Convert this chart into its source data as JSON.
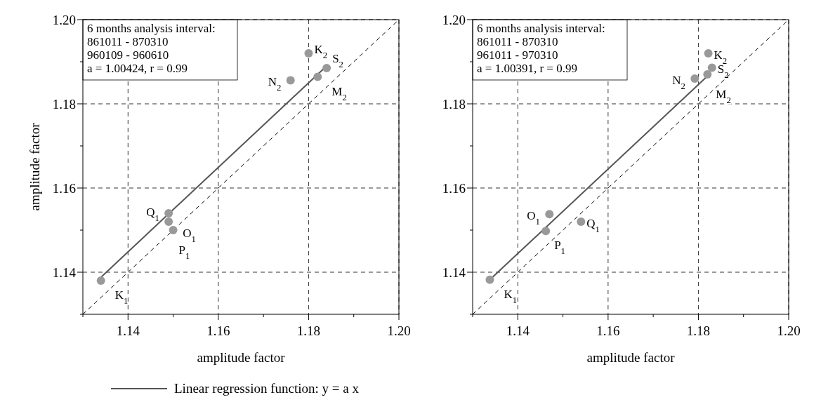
{
  "chart_data": [
    {
      "type": "scatter",
      "ylabel": "amplitude factor",
      "xlabel": "amplitude factor",
      "xlim": [
        1.13,
        1.2
      ],
      "ylim": [
        1.13,
        1.2
      ],
      "xticks": [
        {
          "value": 1.13,
          "label": null
        },
        1.14,
        {
          "value": 1.15,
          "label": null
        },
        1.16,
        {
          "value": 1.17,
          "label": null
        },
        1.18,
        {
          "value": 1.19,
          "label": null
        },
        {
          "value": 1.2,
          "label": "1.20"
        }
      ],
      "yticks": [
        {
          "value": 1.13,
          "label": null
        },
        1.14,
        {
          "value": 1.15,
          "label": null
        },
        1.16,
        {
          "value": 1.17,
          "label": null
        },
        1.18,
        {
          "value": 1.19,
          "label": null
        },
        {
          "value": 1.2,
          "label": "1.20"
        }
      ],
      "grid": true,
      "legend": "bottom",
      "marker": "circle",
      "series": [
        {
          "type": "line",
          "color": "#000000",
          "line_style": "dashed",
          "marker": "none",
          "x": [
            1.13,
            1.2
          ],
          "values": [
            1.13,
            1.2
          ]
        },
        {
          "type": "line",
          "name": "Linear regression function:  y = a x",
          "color": "#555555",
          "line_style": "solid",
          "marker": "none",
          "x": [
            1.134,
            1.184
          ],
          "values": [
            1.1388,
            1.189
          ]
        },
        {
          "color": "#999999",
          "x": [
            1.134,
            1.149,
            1.149,
            1.15,
            1.176,
            1.18,
            1.182,
            1.184
          ],
          "values": [
            1.138,
            1.154,
            1.152,
            1.15,
            1.1856,
            1.192,
            1.1864,
            1.1885
          ]
        }
      ],
      "annotations": [
        "6 months analysis interval:",
        "861011 - 870310",
        "960109 - 960610",
        "a = 1.00424,  r = 0.99",
        {
          "text": "K$_{1}$",
          "x": 1.134,
          "y": 1.138
        },
        {
          "text": "O$_{1}$",
          "x": 1.149,
          "y": 1.154
        },
        {
          "text": "Q$_{1}$",
          "x": 1.149,
          "y": 1.152
        },
        {
          "text": "P$_{1}$",
          "x": 1.15,
          "y": 1.15
        },
        {
          "text": "N$_{2}$",
          "x": 1.176,
          "y": 1.1856
        },
        {
          "text": "K$_{2}$",
          "x": 1.18,
          "y": 1.192
        },
        {
          "text": "M$_{2}$",
          "x": 1.182,
          "y": 1.1864
        },
        {
          "text": "S$_{2}$",
          "x": 1.184,
          "y": 1.1885
        }
      ]
    },
    {
      "type": "scatter",
      "xlabel": "amplitude factor",
      "xlim": [
        1.13,
        1.2
      ],
      "ylim": [
        1.13,
        1.2
      ],
      "xticks": [
        {
          "value": 1.13,
          "label": null
        },
        1.14,
        {
          "value": 1.15,
          "label": null
        },
        1.16,
        {
          "value": 1.17,
          "label": null
        },
        1.18,
        {
          "value": 1.19,
          "label": null
        },
        {
          "value": 1.2,
          "label": "1.20"
        }
      ],
      "yticks": [
        {
          "value": 1.13,
          "label": null
        },
        1.14,
        {
          "value": 1.15,
          "label": null
        },
        1.16,
        {
          "value": 1.17,
          "label": null
        },
        1.18,
        {
          "value": 1.19,
          "label": null
        },
        {
          "value": 1.2,
          "label": "1.20"
        }
      ],
      "grid": true,
      "marker": "circle",
      "series": [
        {
          "type": "line",
          "color": "#000000",
          "line_style": "dashed",
          "marker": "none",
          "x": [
            1.13,
            1.2
          ],
          "values": [
            1.13,
            1.2
          ]
        },
        {
          "type": "line",
          "color": "#555555",
          "line_style": "solid",
          "marker": "none",
          "x": [
            1.134,
            1.182
          ],
          "values": [
            1.1384,
            1.1866
          ]
        },
        {
          "color": "#999999",
          "x": [
            1.1338,
            1.147,
            1.1462,
            1.154,
            1.1792,
            1.1822,
            1.182,
            1.183
          ],
          "values": [
            1.1382,
            1.1538,
            1.1498,
            1.152,
            1.186,
            1.192,
            1.187,
            1.1886
          ]
        }
      ],
      "annotations": [
        "6 months analysis interval:",
        "861011 - 870310",
        "961011 - 970310",
        "a = 1.00391,  r = 0.99",
        {
          "text": "K$_{1}$",
          "x": 1.1338,
          "y": 1.1382
        },
        {
          "text": "O$_{1}$",
          "x": 1.147,
          "y": 1.1538
        },
        {
          "text": "P$_{1}$",
          "x": 1.1462,
          "y": 1.1498
        },
        {
          "text": "Q$_{1}$",
          "x": 1.154,
          "y": 1.152
        },
        {
          "text": "N$_{2}$",
          "x": 1.1792,
          "y": 1.186
        },
        {
          "text": "K$_{2}$",
          "x": 1.1822,
          "y": 1.192
        },
        {
          "text": "M$_{2}$",
          "x": 1.182,
          "y": 1.187
        },
        {
          "text": "S$_{2}$",
          "x": 1.183,
          "y": 1.1886
        }
      ]
    }
  ]
}
